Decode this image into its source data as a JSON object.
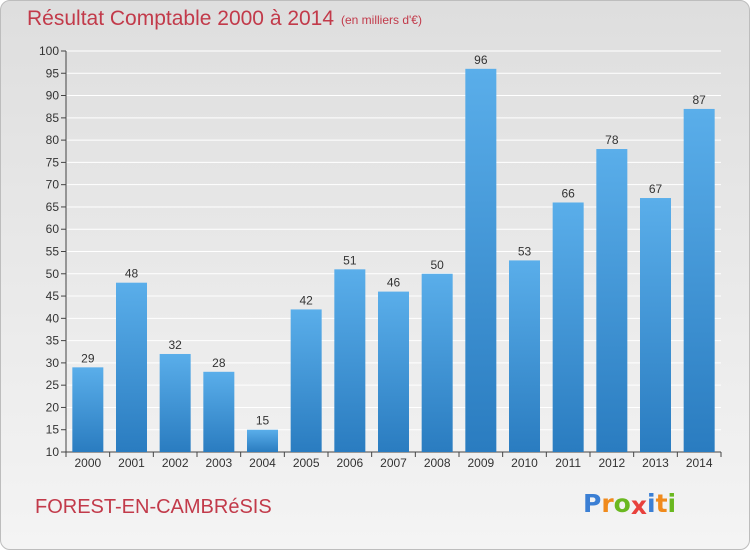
{
  "page": {
    "title": "Résultat Comptable 2000 à 2014",
    "subtitle": "(en milliers d'€)",
    "place": "FOREST-EN-CAMBRéSIS",
    "logo": {
      "text": "Proxiti",
      "letters": [
        {
          "ch": "P",
          "color": "#3b7fd4"
        },
        {
          "ch": "r",
          "color": "#f08a1c"
        },
        {
          "ch": "o",
          "color": "#6ab820"
        },
        {
          "ch": "x",
          "color": "#e8413c"
        },
        {
          "ch": "i",
          "color": "#3b7fd4"
        },
        {
          "ch": "t",
          "color": "#f08a1c"
        },
        {
          "ch": "i",
          "color": "#6ab820"
        }
      ]
    }
  },
  "chart_data": {
    "type": "bar",
    "title": "Résultat Comptable 2000 à 2014",
    "subtitle": "(en milliers d'€)",
    "categories": [
      "2000",
      "2001",
      "2002",
      "2003",
      "2004",
      "2005",
      "2006",
      "2007",
      "2008",
      "2009",
      "2010",
      "2011",
      "2012",
      "2013",
      "2014"
    ],
    "values": [
      29,
      48,
      32,
      28,
      15,
      42,
      51,
      46,
      50,
      96,
      53,
      66,
      78,
      67,
      87
    ],
    "ylim": [
      10,
      100
    ],
    "yticks": [
      "10",
      "15",
      "20",
      "25",
      "30",
      "35",
      "40",
      "45",
      "50",
      "55",
      "60",
      "65",
      "70",
      "75",
      "80",
      "85",
      "90",
      "95",
      "100"
    ],
    "grid": true,
    "colors": {
      "bar_light": "#5aaeea",
      "bar_dark": "#2a7cc0",
      "grid": "#ffffff"
    }
  }
}
